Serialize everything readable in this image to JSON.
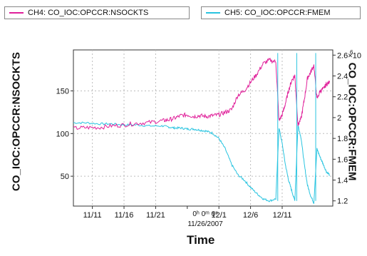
{
  "legend": {
    "ch4": "CH4: CO_IOC:OPCCR:NSOCKTS",
    "ch5": "CH5: CO_IOC:OPCCR:FMEM"
  },
  "axes": {
    "ylabel_left": "CO_IOC:OPCCR:NSOCKTS",
    "ylabel_right": "CO_IOC:OPCCR:FMEM",
    "xlabel": "Time",
    "t0_label": "0ʰ 0ᵐ 0ˢ",
    "t0_date": "11/26/2007",
    "right_exponent_note": "6"
  },
  "colors": {
    "ch4": "#e0209a",
    "ch5": "#29c4e0",
    "grid": "#bdbdbd"
  },
  "chart_data": {
    "type": "line",
    "grid": true,
    "x_ticks": [
      "11/11",
      "11/16",
      "11/21",
      "12/1",
      "12/6",
      "12/11"
    ],
    "y_left_ticks": [
      "50",
      "100",
      "150"
    ],
    "y_right_ticks": [
      "1.2",
      "1.4",
      "1.6",
      "1.8",
      "2",
      "2.2",
      "2.4",
      "2.6×10"
    ],
    "xlim_days_from_nov_8": [
      0,
      41
    ],
    "ylim_left": [
      15,
      198
    ],
    "ylim_right": [
      1.15,
      2.65
    ],
    "series": [
      {
        "name": "CH4: CO_IOC:OPCCR:NSOCKTS",
        "axis": "left",
        "x_days_from_nov_8": [
          0,
          2,
          4,
          6,
          8,
          10,
          12,
          14,
          15,
          16,
          17,
          18,
          19,
          20,
          21,
          22,
          23,
          24,
          25,
          26,
          27,
          28,
          29,
          30,
          31,
          32,
          32.5,
          33,
          33.5,
          34,
          34.5,
          35,
          35.5,
          36,
          36.5,
          37,
          37.5,
          38,
          38.5,
          39,
          39.5,
          40,
          40.5
        ],
        "values": [
          106,
          107,
          107,
          109,
          110,
          112,
          113,
          115,
          116,
          118,
          121,
          122,
          120,
          121,
          120,
          121,
          122,
          125,
          128,
          145,
          150,
          160,
          170,
          182,
          186,
          184,
          115,
          122,
          135,
          150,
          162,
          168,
          110,
          118,
          140,
          165,
          172,
          180,
          140,
          150,
          152,
          158,
          160
        ]
      },
      {
        "name": "CH5: CO_IOC:OPCCR:FMEM",
        "axis": "right",
        "x_days_from_nov_8": [
          0,
          2,
          4,
          6,
          8,
          10,
          12,
          14,
          15,
          16,
          17,
          18,
          19,
          20,
          21,
          22,
          23,
          24,
          25,
          26,
          27,
          28,
          29,
          30,
          31,
          32,
          32.5,
          33,
          33.5,
          34,
          34.5,
          35,
          35.5,
          36,
          36.5,
          37,
          37.5,
          38,
          38.5,
          39,
          39.5,
          40,
          40.5
        ],
        "values": [
          1.95,
          1.95,
          1.94,
          1.94,
          1.93,
          1.93,
          1.92,
          1.92,
          1.91,
          1.9,
          1.9,
          1.89,
          1.89,
          1.88,
          1.87,
          1.85,
          1.8,
          1.7,
          1.55,
          1.45,
          1.4,
          1.33,
          1.27,
          1.22,
          1.2,
          1.22,
          1.9,
          1.75,
          1.55,
          1.4,
          1.3,
          1.2,
          1.93,
          1.8,
          1.55,
          1.35,
          1.25,
          1.18,
          1.7,
          1.62,
          1.55,
          1.48,
          1.45
        ]
      }
    ]
  }
}
